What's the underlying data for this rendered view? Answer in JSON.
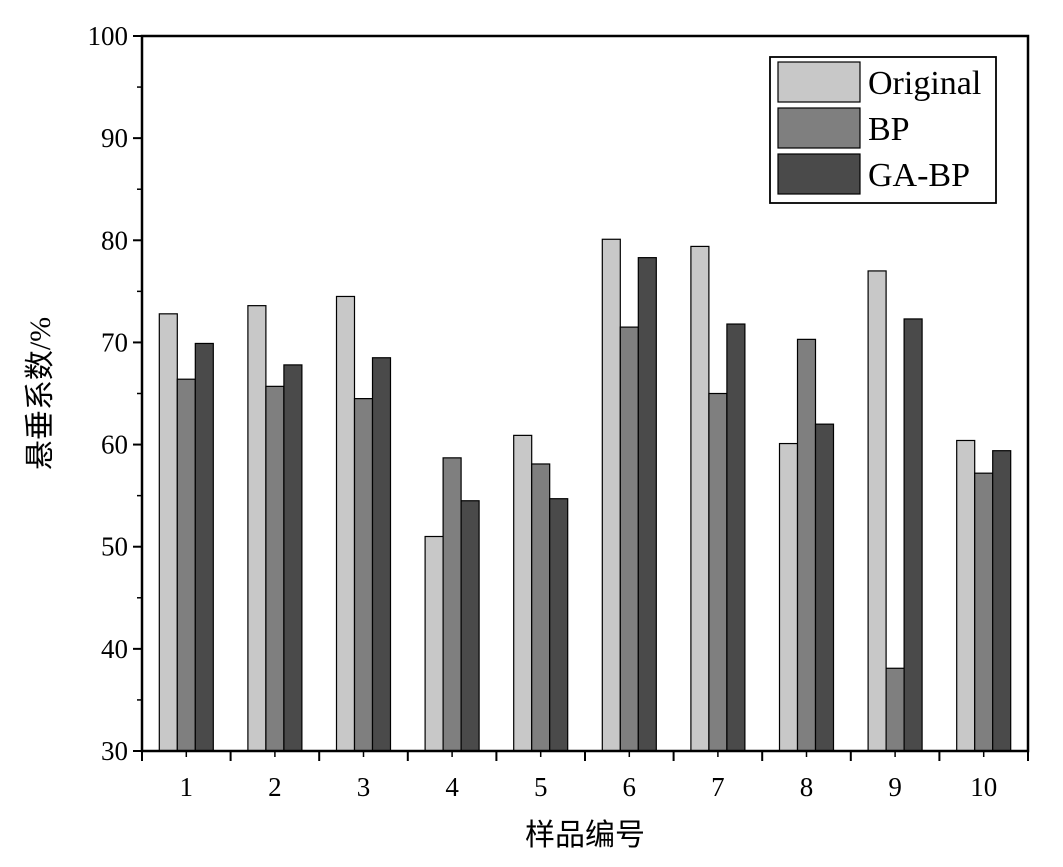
{
  "chart_data": {
    "type": "bar",
    "title": "",
    "xlabel": "样品编号",
    "ylabel": "悬垂系数/%",
    "categories": [
      "1",
      "2",
      "3",
      "4",
      "5",
      "6",
      "7",
      "8",
      "9",
      "10"
    ],
    "ylim": [
      30,
      100
    ],
    "yticks": [
      "30",
      "40",
      "50",
      "60",
      "70",
      "80",
      "90",
      "100"
    ],
    "grid": false,
    "legend_position": "top-right",
    "series": [
      {
        "name": "Original",
        "color": "#c8c8c8",
        "values": [
          72.8,
          73.6,
          74.5,
          51.0,
          60.9,
          80.1,
          79.4,
          60.1,
          77.0,
          60.4
        ]
      },
      {
        "name": "BP",
        "color": "#7f7f7f",
        "values": [
          66.4,
          65.7,
          64.5,
          58.7,
          58.1,
          71.5,
          65.0,
          70.3,
          38.1,
          57.2
        ]
      },
      {
        "name": "GA-BP",
        "color": "#4a4a4a",
        "values": [
          69.9,
          67.8,
          68.5,
          54.5,
          54.7,
          78.3,
          71.8,
          62.0,
          72.3,
          59.4
        ]
      }
    ]
  }
}
